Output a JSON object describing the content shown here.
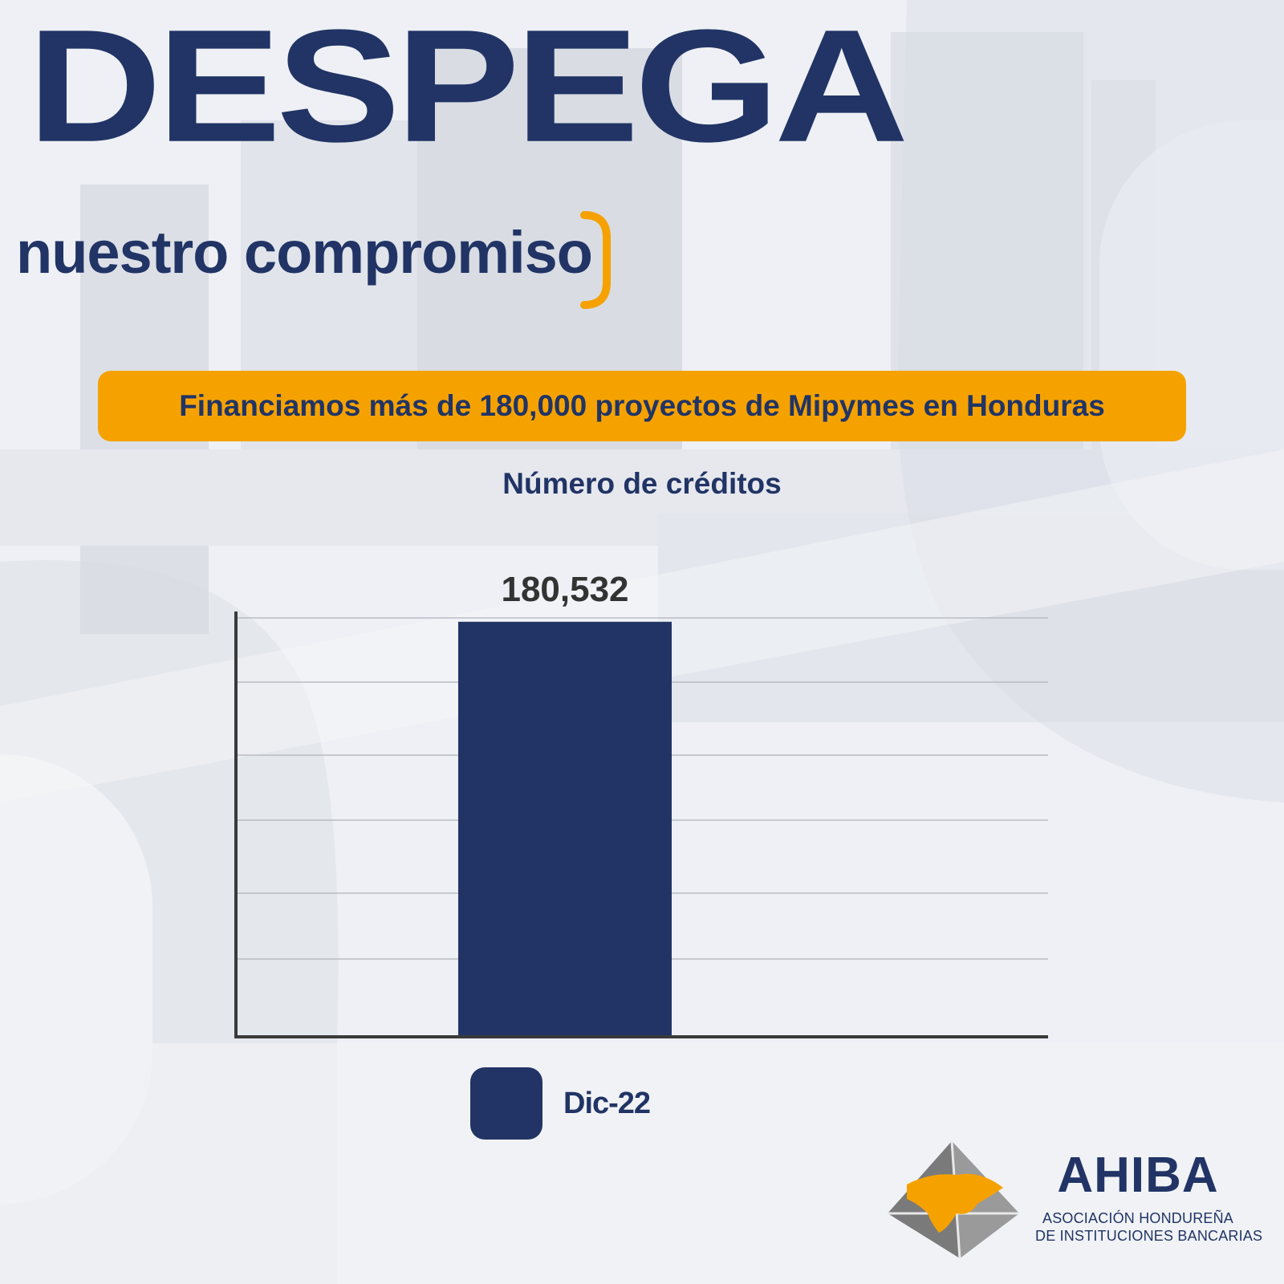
{
  "header": {
    "headline": "DESPEGA",
    "subheadline": "nuestro compromiso"
  },
  "banner": {
    "text": "Financiamos más de 180,000 proyectos de Mipymes en Honduras"
  },
  "colors": {
    "navy": "#213465",
    "orange": "#F5A200",
    "axis": "#3a3a3a",
    "grid": "#b9bcc3"
  },
  "chart_data": {
    "type": "bar",
    "title": "Número de créditos",
    "categories": [
      "Dic-22"
    ],
    "series": [
      {
        "name": "Dic-22",
        "values": [
          180532
        ]
      }
    ],
    "data_labels": [
      "180,532"
    ],
    "xlabel": "",
    "ylabel": "",
    "ylim": [
      0,
      185000
    ],
    "grid": true,
    "legend": "bottom-center"
  },
  "logo": {
    "name": "AHIBA",
    "tagline_line1": "ASOCIACIÓN HONDUREÑA",
    "tagline_line2": "DE INSTITUCIONES BANCARIAS"
  }
}
